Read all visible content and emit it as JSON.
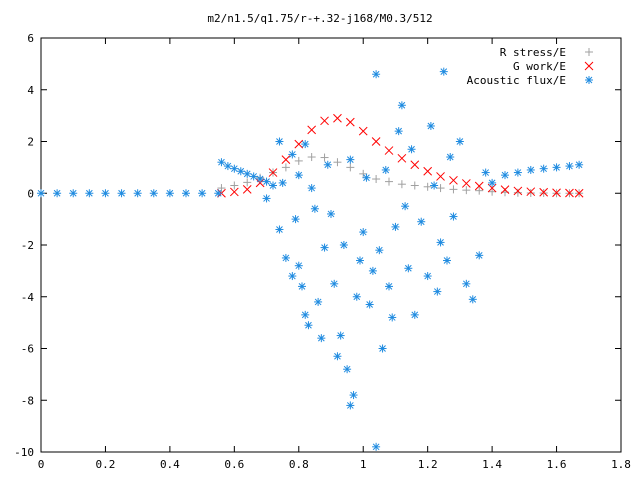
{
  "chart_data": {
    "type": "scatter",
    "title": "m2/n1.5/q1.75/r-+.32-j168/M0.3/512",
    "xlabel": "",
    "ylabel": "",
    "xlim": [
      0,
      1.8
    ],
    "ylim": [
      -10,
      6
    ],
    "x_ticks": [
      "0",
      "0.2",
      "0.4",
      "0.6",
      "0.8",
      "1",
      "1.2",
      "1.4",
      "1.6",
      "1.8"
    ],
    "y_ticks": [
      "6",
      "4",
      "2",
      "0",
      "-2",
      "-4",
      "-6",
      "-8",
      "-10"
    ],
    "grid": false,
    "legend_position": "top-right",
    "series": [
      {
        "name": "R stress/E",
        "marker": "plus",
        "color": "#a0a0a0",
        "x": [
          0.56,
          0.6,
          0.64,
          0.68,
          0.72,
          0.76,
          0.8,
          0.84,
          0.88,
          0.92,
          0.96,
          1.0,
          1.04,
          1.08,
          1.12,
          1.16,
          1.2,
          1.24,
          1.28,
          1.32,
          1.36,
          1.4,
          1.44,
          1.48,
          1.52,
          1.56,
          1.6,
          1.64,
          1.67
        ],
        "y": [
          0.2,
          0.3,
          0.42,
          0.6,
          0.8,
          1.0,
          1.25,
          1.4,
          1.38,
          1.2,
          1.0,
          0.75,
          0.55,
          0.45,
          0.35,
          0.3,
          0.25,
          0.2,
          0.15,
          0.12,
          0.1,
          0.06,
          0.04,
          0.02,
          0.01,
          0.01,
          0.0,
          0.0,
          0.0
        ]
      },
      {
        "name": "G work/E",
        "marker": "cross",
        "color": "#ff0000",
        "x": [
          0.56,
          0.6,
          0.64,
          0.68,
          0.72,
          0.76,
          0.8,
          0.84,
          0.88,
          0.92,
          0.96,
          1.0,
          1.04,
          1.08,
          1.12,
          1.16,
          1.2,
          1.24,
          1.28,
          1.32,
          1.36,
          1.4,
          1.44,
          1.48,
          1.52,
          1.56,
          1.6,
          1.64,
          1.67
        ],
        "y": [
          0.0,
          0.05,
          0.15,
          0.4,
          0.8,
          1.3,
          1.9,
          2.45,
          2.8,
          2.9,
          2.75,
          2.4,
          2.0,
          1.65,
          1.35,
          1.1,
          0.85,
          0.65,
          0.5,
          0.38,
          0.28,
          0.2,
          0.14,
          0.09,
          0.06,
          0.04,
          0.02,
          0.01,
          0.0
        ]
      },
      {
        "name": "Acoustic flux/E",
        "marker": "star",
        "color": "#1f8be0",
        "x": [
          0.0,
          0.05,
          0.1,
          0.15,
          0.2,
          0.25,
          0.3,
          0.35,
          0.4,
          0.45,
          0.5,
          0.55,
          0.56,
          0.58,
          0.6,
          0.62,
          0.64,
          0.66,
          0.68,
          0.7,
          0.7,
          0.72,
          0.74,
          0.74,
          0.75,
          0.76,
          0.78,
          0.78,
          0.79,
          0.8,
          0.8,
          0.81,
          0.82,
          0.82,
          0.83,
          0.84,
          0.85,
          0.86,
          0.87,
          0.88,
          0.89,
          0.9,
          0.91,
          0.92,
          0.93,
          0.94,
          0.95,
          0.96,
          0.96,
          0.97,
          0.98,
          0.99,
          1.0,
          1.01,
          1.02,
          1.03,
          1.04,
          1.04,
          1.05,
          1.06,
          1.07,
          1.08,
          1.09,
          1.1,
          1.11,
          1.12,
          1.13,
          1.14,
          1.15,
          1.16,
          1.18,
          1.2,
          1.21,
          1.22,
          1.23,
          1.24,
          1.25,
          1.26,
          1.27,
          1.28,
          1.3,
          1.32,
          1.34,
          1.36,
          1.38,
          1.4,
          1.44,
          1.48,
          1.52,
          1.56,
          1.6,
          1.64,
          1.67
        ],
        "y": [
          0.0,
          0.0,
          0.0,
          0.0,
          0.0,
          0.0,
          0.0,
          0.0,
          0.0,
          0.0,
          0.0,
          0.0,
          1.2,
          1.05,
          0.95,
          0.85,
          0.75,
          0.65,
          0.55,
          0.45,
          -0.2,
          0.3,
          2.0,
          -1.4,
          0.4,
          -2.5,
          1.5,
          -3.2,
          -1.0,
          0.7,
          -2.8,
          -3.6,
          1.9,
          -4.7,
          -5.1,
          0.2,
          -0.6,
          -4.2,
          -5.6,
          -2.1,
          1.1,
          -0.8,
          -3.5,
          -6.3,
          -5.5,
          -2.0,
          -6.8,
          -8.2,
          1.3,
          -7.8,
          -4.0,
          -2.6,
          -1.5,
          0.6,
          -4.3,
          -3.0,
          4.6,
          -9.8,
          -2.2,
          -6.0,
          0.9,
          -3.6,
          -4.8,
          -1.3,
          2.4,
          3.4,
          -0.5,
          -2.9,
          1.7,
          -4.7,
          -1.1,
          -3.2,
          2.6,
          0.3,
          -3.8,
          -1.9,
          4.7,
          -2.6,
          1.4,
          -0.9,
          2.0,
          -3.5,
          -4.1,
          -2.4,
          0.8,
          0.4,
          0.7,
          0.8,
          0.9,
          0.95,
          1.0,
          1.05,
          1.1
        ]
      }
    ]
  }
}
